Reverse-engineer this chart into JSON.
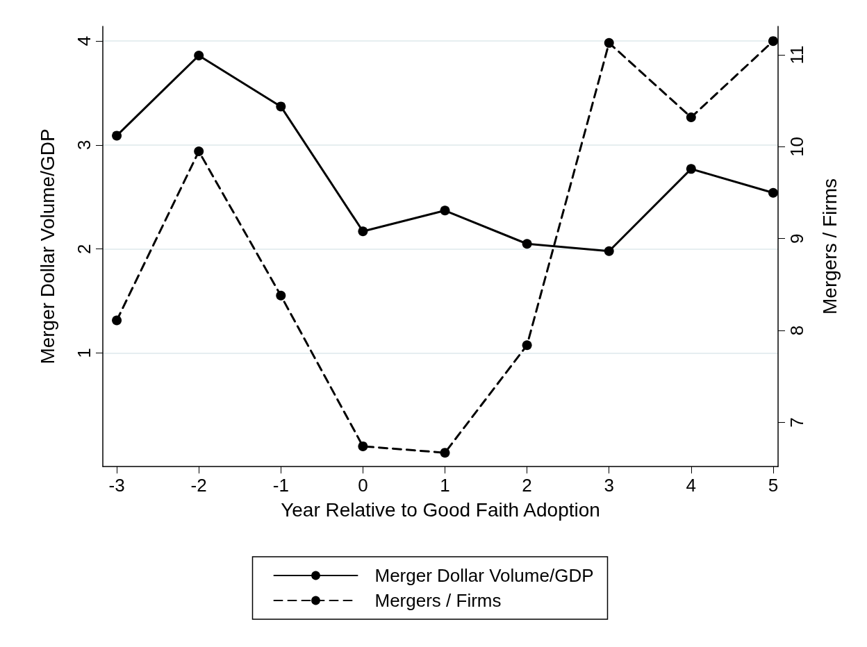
{
  "chart_data": {
    "type": "line",
    "xlabel": "Year Relative to Good Faith Adoption",
    "ylabel": "Merger Dollar Volume/GDP",
    "y2label": "Mergers / Firms",
    "x": [
      -3,
      -2,
      -1,
      0,
      1,
      2,
      3,
      4,
      5
    ],
    "series": [
      {
        "name": "Merger Dollar Volume/GDP",
        "color": "#000000",
        "line_style": "solid",
        "values": [
          3.09,
          3.86,
          3.37,
          2.17,
          2.37,
          2.05,
          1.98,
          2.77,
          2.54
        ]
      },
      {
        "name": "Mergers / Firms",
        "color": "#000000",
        "line_style": "dashed",
        "axis": "y2",
        "values": [
          8.11,
          9.95,
          8.38,
          6.74,
          6.67,
          7.84,
          11.13,
          10.32,
          11.15
        ]
      }
    ],
    "xlim": [
      -3.17,
      5.06
    ],
    "xticks": [
      -3,
      -2,
      -1,
      0,
      1,
      2,
      3,
      4,
      5
    ],
    "ylim": [
      -0.09,
      4.14
    ],
    "yticks": [
      1,
      2,
      3,
      4
    ],
    "y2lim": [
      6.52,
      11.31
    ],
    "y2ticks": [
      7,
      8,
      9,
      10,
      11
    ],
    "grid": "y",
    "legend": "bottom",
    "marker": "circle"
  }
}
